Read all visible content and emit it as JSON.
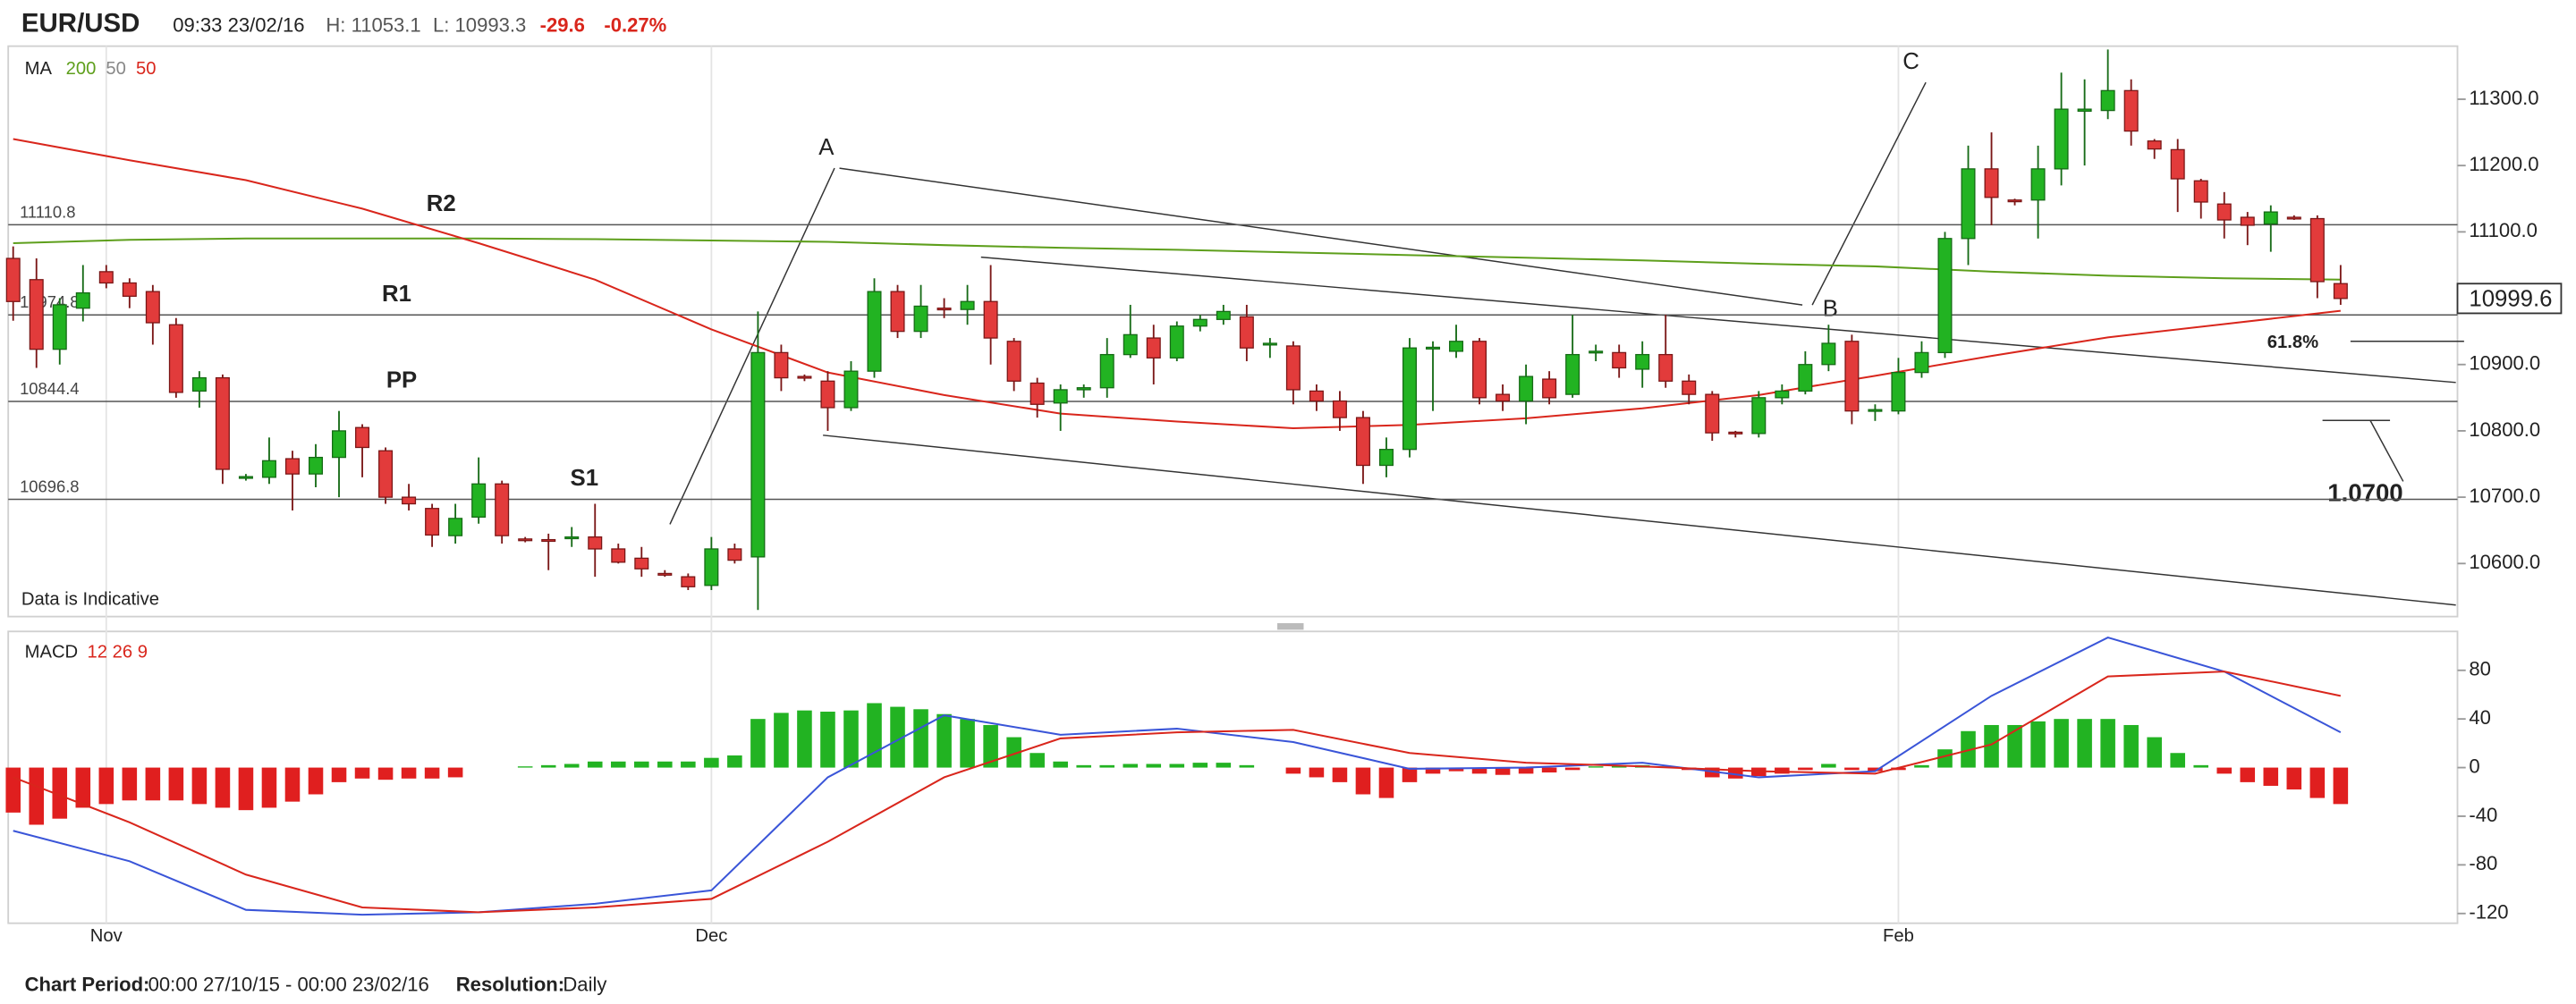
{
  "header": {
    "symbol": "EUR/USD",
    "time": "09:33 23/02/16",
    "high": "H: 11053.1",
    "low": "L: 10993.3",
    "change": "-29.6",
    "change_pct": "-0.27%"
  },
  "footer": {
    "period_label": "Chart Period:",
    "period": "00:00 27/10/15 - 00:00 23/02/16",
    "resolution_label": "Resolution:",
    "resolution": "Daily"
  },
  "chart_data": [
    {
      "type": "candlestick",
      "legend_title": "MA",
      "legend_inactive": "50",
      "up_color": "#22b322",
      "down_color": "#e23b3b",
      "watermark": "Data is Indicative",
      "ylim": [
        10520,
        11380
      ],
      "yticks": [
        {
          "value": 10600,
          "label": "10600.0"
        },
        {
          "value": 10700,
          "label": "10700.0"
        },
        {
          "value": 10800,
          "label": "10800.0"
        },
        {
          "value": 10900,
          "label": "10900.0"
        },
        {
          "value": 11000,
          "label": "11000.0"
        },
        {
          "value": 11100,
          "label": "11100.0"
        },
        {
          "value": 11200,
          "label": "11200.0"
        },
        {
          "value": 11300,
          "label": "11300.0"
        }
      ],
      "levels": [
        11110.8,
        10974.8,
        10844.4,
        10696.8
      ],
      "pivot_labels": [
        "R2",
        "R1",
        "PP",
        "S1"
      ],
      "annotations": [
        "A",
        "B",
        "C",
        "61.8%",
        "1.0700"
      ],
      "open": [
        11060,
        11028,
        10923,
        10985,
        11040,
        11023,
        11010,
        10960,
        10860,
        10880,
        10730,
        10730,
        10758,
        10735,
        10760,
        10805,
        10770,
        10700,
        10683,
        10642,
        10670,
        10720,
        10637,
        10636,
        10638,
        10640,
        10622,
        10608,
        10585,
        10580,
        10567,
        10622,
        10610,
        10918,
        10882,
        10875,
        10835,
        10890,
        11010,
        10950,
        10985,
        10983,
        10995,
        10935,
        10872,
        10842,
        10862,
        10865,
        10915,
        10940,
        10910,
        10958,
        10968,
        10972,
        10930,
        10928,
        10860,
        10845,
        10820,
        10748,
        10772,
        10925,
        10920,
        10935,
        10855,
        10845,
        10878,
        10855,
        10918,
        10918,
        10893,
        10915,
        10875,
        10855,
        10798,
        10796,
        10850,
        10860,
        10900,
        10935,
        10830,
        10830,
        10888,
        10918,
        11090,
        11195,
        11148,
        11148,
        11195,
        11282,
        11283,
        11313,
        11237,
        11224,
        11177,
        11142,
        11122,
        11112,
        11122,
        11120,
        11022
      ],
      "high": [
        11078,
        11060,
        11000,
        11050,
        11050,
        11030,
        11020,
        10970,
        10890,
        10885,
        10735,
        10790,
        10770,
        10780,
        10830,
        10810,
        10775,
        10720,
        10690,
        10690,
        10760,
        10725,
        10640,
        10645,
        10655,
        10690,
        10630,
        10625,
        10590,
        10585,
        10640,
        10630,
        10980,
        10930,
        10885,
        10890,
        10905,
        11030,
        11020,
        11020,
        11000,
        11020,
        11050,
        10940,
        10880,
        10870,
        10870,
        10940,
        10990,
        10960,
        10965,
        10975,
        10990,
        10990,
        10940,
        10935,
        10870,
        10860,
        10830,
        10790,
        10940,
        10935,
        10960,
        10940,
        10870,
        10900,
        10890,
        10975,
        10930,
        10930,
        10935,
        10975,
        10885,
        10860,
        10800,
        10860,
        10870,
        10920,
        10960,
        10945,
        10840,
        10910,
        10935,
        11100,
        11230,
        11250,
        11150,
        11230,
        11340,
        11330,
        11375,
        11330,
        11240,
        11240,
        11180,
        11160,
        11130,
        11140,
        11125,
        11125,
        11050
      ],
      "low": [
        10966,
        10895,
        10900,
        10965,
        11015,
        10985,
        10930,
        10850,
        10835,
        10720,
        10725,
        10720,
        10680,
        10715,
        10700,
        10730,
        10690,
        10680,
        10625,
        10630,
        10660,
        10630,
        10632,
        10590,
        10625,
        10580,
        10600,
        10580,
        10580,
        10560,
        10560,
        10600,
        10530,
        10860,
        10875,
        10800,
        10830,
        10880,
        10940,
        10940,
        10970,
        10960,
        10900,
        10860,
        10820,
        10800,
        10850,
        10850,
        10910,
        10870,
        10905,
        10950,
        10960,
        10905,
        10910,
        10840,
        10830,
        10800,
        10720,
        10730,
        10760,
        10830,
        10910,
        10840,
        10830,
        10810,
        10840,
        10850,
        10905,
        10880,
        10865,
        10865,
        10840,
        10785,
        10790,
        10790,
        10840,
        10855,
        10890,
        10810,
        10815,
        10825,
        10880,
        10910,
        11050,
        11110,
        11140,
        11090,
        11170,
        11200,
        11270,
        11230,
        11210,
        11130,
        11120,
        11090,
        11080,
        11070,
        11118,
        11000,
        10990
      ],
      "close": [
        10995,
        10923,
        10990,
        11008,
        11023,
        11003,
        10963,
        10858,
        10880,
        10742,
        10731,
        10755,
        10735,
        10760,
        10800,
        10775,
        10700,
        10690,
        10643,
        10668,
        10720,
        10642,
        10636,
        10635,
        10640,
        10622,
        10602,
        10592,
        10584,
        10565,
        10622,
        10605,
        10918,
        10880,
        10880,
        10835,
        10890,
        11010,
        10950,
        10988,
        10983,
        10995,
        10940,
        10875,
        10840,
        10862,
        10865,
        10915,
        10945,
        10910,
        10958,
        10968,
        10980,
        10925,
        10932,
        10862,
        10845,
        10820,
        10748,
        10772,
        10925,
        10926,
        10935,
        10850,
        10845,
        10882,
        10850,
        10915,
        10920,
        10895,
        10915,
        10875,
        10855,
        10797,
        10796,
        10850,
        10860,
        10900,
        10932,
        10830,
        10832,
        10888,
        10918,
        11090,
        11195,
        11152,
        11147,
        11195,
        11285,
        11285,
        11313,
        11252,
        11225,
        11180,
        11145,
        11118,
        11110,
        11130,
        11120,
        11025,
        10999.6
      ],
      "series": [
        {
          "name": "200",
          "color": "#5e9f1c",
          "x": [
            0,
            5,
            10,
            15,
            20,
            25,
            30,
            35,
            40,
            45,
            50,
            55,
            60,
            65,
            70,
            75,
            80,
            85,
            90,
            95,
            100
          ],
          "values": [
            11083,
            11088,
            11090,
            11090,
            11090,
            11089,
            11087,
            11085,
            11080,
            11076,
            11073,
            11069,
            11065,
            11061,
            11057,
            11052,
            11048,
            11040,
            11034,
            11030,
            11028
          ]
        },
        {
          "name": "50",
          "color": "#d9261c",
          "x": [
            0,
            5,
            10,
            15,
            20,
            25,
            30,
            35,
            40,
            45,
            50,
            55,
            60,
            65,
            70,
            75,
            80,
            85,
            90,
            95,
            100
          ],
          "values": [
            11240,
            11208,
            11178,
            11135,
            11083,
            11028,
            10953,
            10888,
            10854,
            10826,
            10814,
            10804,
            10809,
            10819,
            10834,
            10854,
            10883,
            10913,
            10941,
            10961,
            10981
          ]
        }
      ]
    },
    {
      "type": "bar",
      "legend_title": "MACD",
      "params": "12 26 9",
      "up_color": "#22b322",
      "down_color": "#e01f1f",
      "categories": [
        null,
        null,
        null,
        null,
        "Nov",
        null,
        null,
        null,
        null,
        null,
        null,
        null,
        null,
        null,
        null,
        null,
        null,
        null,
        null,
        null,
        null,
        null,
        null,
        null,
        null,
        null,
        null,
        null,
        null,
        null,
        "Dec",
        null,
        null,
        null,
        null,
        null,
        null,
        null,
        null,
        null,
        null,
        null,
        null,
        null,
        null,
        null,
        null,
        null,
        null,
        null,
        null,
        null,
        null,
        null,
        null,
        null,
        null,
        null,
        null,
        null,
        null,
        null,
        null,
        null,
        null,
        null,
        null,
        null,
        null,
        null,
        null,
        null,
        null,
        null,
        null,
        null,
        null,
        null,
        null,
        null,
        null,
        "Feb",
        null,
        null,
        null,
        null,
        null,
        null,
        null,
        null,
        null,
        null,
        null,
        null,
        null,
        null,
        null,
        null,
        null,
        null,
        null
      ],
      "ylim": [
        -128,
        112
      ],
      "yticks": [
        -120,
        -80,
        -40,
        0,
        40,
        80
      ],
      "values": [
        -37,
        -47,
        -42,
        -33,
        -30,
        -27,
        -27,
        -27,
        -30,
        -33,
        -35,
        -33,
        -28,
        -22,
        -12,
        -9,
        -10,
        -9,
        -9,
        -8,
        0,
        0,
        1,
        2,
        3,
        5,
        5,
        5,
        5,
        5,
        8,
        10,
        40,
        45,
        47,
        46,
        47,
        53,
        50,
        48,
        44,
        40,
        35,
        25,
        12,
        5,
        2,
        2,
        3,
        3,
        3,
        4,
        4,
        2,
        0,
        -5,
        -8,
        -12,
        -22,
        -25,
        -12,
        -5,
        -3,
        -5,
        -6,
        -5,
        -4,
        -2,
        1,
        2,
        2,
        1,
        -2,
        -8,
        -9,
        -7,
        -5,
        -2,
        3,
        -2,
        -3,
        -2,
        2,
        15,
        30,
        35,
        35,
        38,
        40,
        40,
        40,
        35,
        25,
        12,
        2,
        -5,
        -12,
        -15,
        -18,
        -25,
        -30
      ],
      "series": [
        {
          "color": "#3a55d8",
          "x": [
            0,
            5,
            10,
            15,
            20,
            25,
            30,
            35,
            40,
            45,
            50,
            55,
            60,
            65,
            70,
            75,
            80,
            85,
            90,
            95,
            100
          ],
          "values": [
            -52,
            -77,
            -117,
            -121,
            -119,
            -112,
            -101,
            -8,
            43,
            27,
            32,
            21,
            -1,
            0,
            4,
            -8,
            -3,
            59,
            107,
            79,
            29
          ]
        },
        {
          "color": "#d9261c",
          "x": [
            0,
            5,
            10,
            15,
            20,
            25,
            30,
            35,
            40,
            45,
            50,
            55,
            60,
            65,
            70,
            75,
            80,
            85,
            90,
            95,
            100
          ],
          "values": [
            -8,
            -45,
            -88,
            -115,
            -119,
            -115,
            -108,
            -61,
            -8,
            24,
            29,
            31,
            12,
            4,
            1,
            -3,
            -5,
            19,
            75,
            79,
            59
          ]
        }
      ]
    }
  ]
}
